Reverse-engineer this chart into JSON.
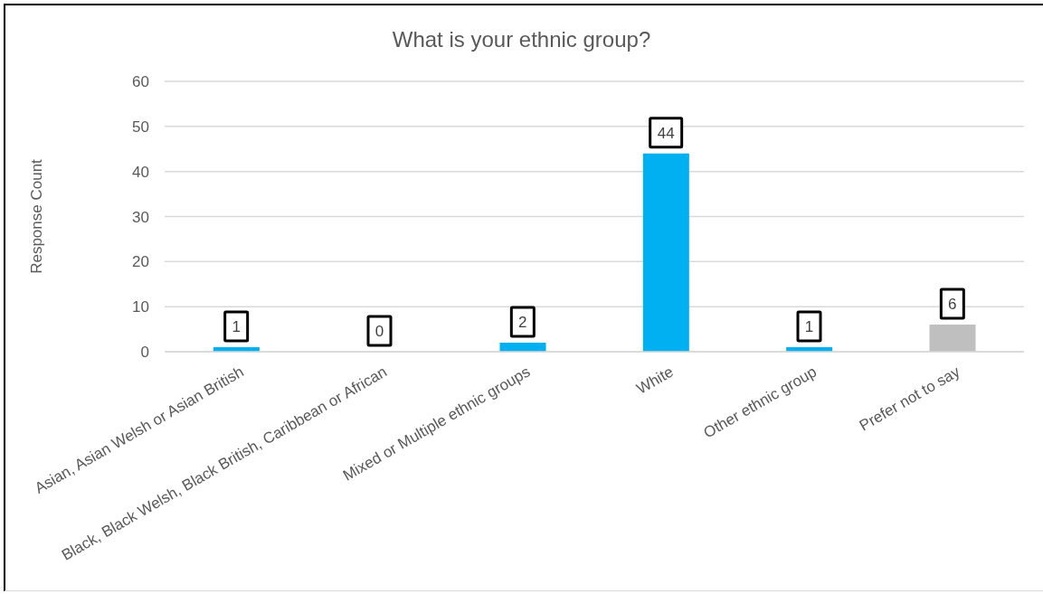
{
  "chart_data": {
    "type": "bar",
    "title": "What is your ethnic group?",
    "ylabel": "Response Count",
    "categories": [
      "Asian, Asian Welsh or Asian British",
      "Black, Black Welsh, Black British, Caribbean or African",
      "Mixed or Multiple ethnic groups",
      "White",
      "Other ethnic group",
      "Prefer not to say"
    ],
    "values": [
      1,
      0,
      2,
      44,
      1,
      6
    ],
    "colors": [
      "#00b0f0",
      "#00b0f0",
      "#00b0f0",
      "#00b0f0",
      "#00b0f0",
      "#bfbfbf"
    ],
    "ylim": [
      0,
      60
    ],
    "yticks": [
      0,
      10,
      20,
      30,
      40,
      50,
      60
    ],
    "grid": "y",
    "data_labels": true
  }
}
